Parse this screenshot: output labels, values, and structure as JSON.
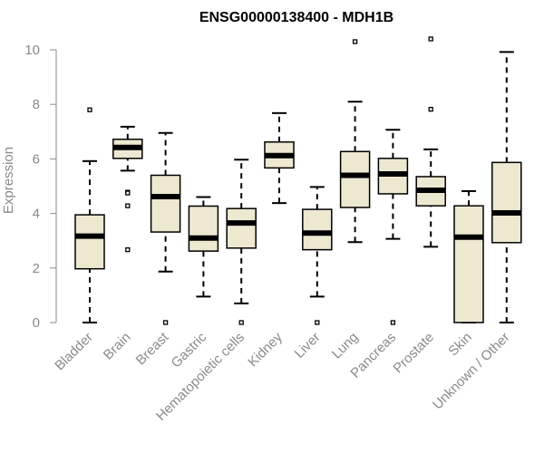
{
  "chart_data": {
    "type": "boxplot",
    "title": "ENSG00000138400 - MDH1B",
    "xlabel": "",
    "ylabel": "Expression",
    "ylim": [
      0,
      10
    ],
    "yticks": [
      0,
      2,
      4,
      6,
      8,
      10
    ],
    "grid": false,
    "colors": {
      "box_fill": "#ede8d0",
      "box_stroke": "#000000",
      "axis": "#8a8a8a",
      "title": "#000000"
    },
    "categories": [
      "Bladder",
      "Brain",
      "Breast",
      "Gastric",
      "Hematopoietic cells",
      "Kidney",
      "Liver",
      "Lung",
      "Pancreas",
      "Prostate",
      "Skin",
      "Unknown / Other"
    ],
    "boxes": [
      {
        "name": "Bladder",
        "whisker_low": 0.0,
        "q1": 1.97,
        "median": 3.17,
        "q3": 3.95,
        "whisker_high": 5.92,
        "outliers": [
          7.8
        ]
      },
      {
        "name": "Brain",
        "whisker_low": 5.57,
        "q1": 6.02,
        "median": 6.42,
        "q3": 6.72,
        "whisker_high": 7.18,
        "outliers": [
          4.78,
          4.75,
          4.28,
          2.67
        ]
      },
      {
        "name": "Breast",
        "whisker_low": 1.87,
        "q1": 3.32,
        "median": 4.62,
        "q3": 5.4,
        "whisker_high": 6.95,
        "outliers": [
          0.0
        ]
      },
      {
        "name": "Gastric",
        "whisker_low": 0.95,
        "q1": 2.62,
        "median": 3.1,
        "q3": 4.27,
        "whisker_high": 4.6,
        "outliers": []
      },
      {
        "name": "Hematopoietic cells",
        "whisker_low": 0.7,
        "q1": 2.73,
        "median": 3.65,
        "q3": 4.18,
        "whisker_high": 5.97,
        "outliers": [
          0.0
        ]
      },
      {
        "name": "Kidney",
        "whisker_low": 4.38,
        "q1": 5.67,
        "median": 6.12,
        "q3": 6.62,
        "whisker_high": 7.68,
        "outliers": []
      },
      {
        "name": "Liver",
        "whisker_low": 0.95,
        "q1": 2.67,
        "median": 3.28,
        "q3": 4.15,
        "whisker_high": 4.97,
        "outliers": [
          0.0
        ]
      },
      {
        "name": "Lung",
        "whisker_low": 2.95,
        "q1": 4.22,
        "median": 5.4,
        "q3": 6.27,
        "whisker_high": 8.1,
        "outliers": [
          10.3
        ]
      },
      {
        "name": "Pancreas",
        "whisker_low": 3.07,
        "q1": 4.72,
        "median": 5.45,
        "q3": 6.02,
        "whisker_high": 7.07,
        "outliers": [
          0.0
        ]
      },
      {
        "name": "Prostate",
        "whisker_low": 2.78,
        "q1": 4.28,
        "median": 4.85,
        "q3": 5.35,
        "whisker_high": 6.35,
        "outliers": [
          10.4,
          7.82
        ]
      },
      {
        "name": "Skin",
        "whisker_low": 0.0,
        "q1": 0.0,
        "median": 3.13,
        "q3": 4.28,
        "whisker_high": 4.82,
        "outliers": []
      },
      {
        "name": "Unknown / Other",
        "whisker_low": 0.0,
        "q1": 2.93,
        "median": 4.02,
        "q3": 5.87,
        "whisker_high": 9.92,
        "outliers": []
      }
    ]
  }
}
